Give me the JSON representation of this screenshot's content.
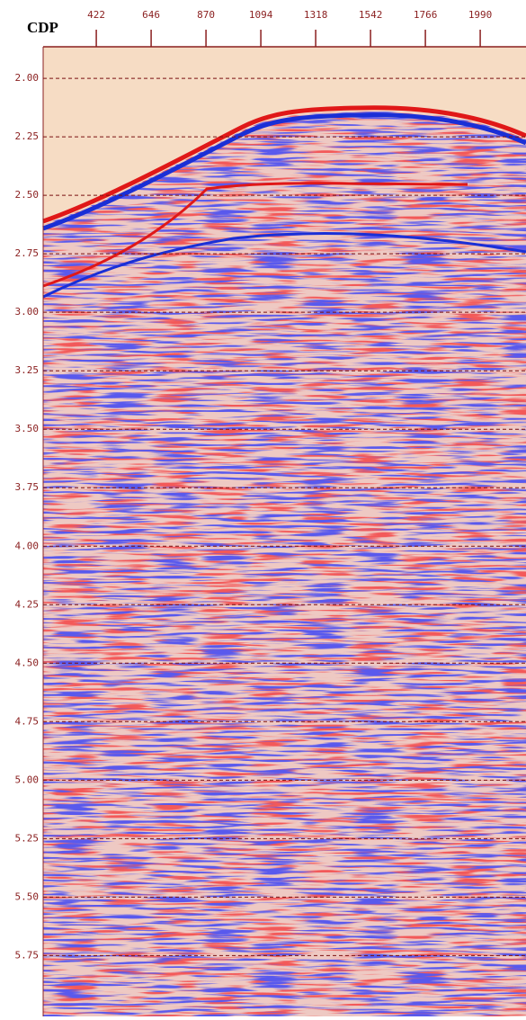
{
  "chart_data": {
    "type": "seismic",
    "xlabel": "CDP",
    "xlim": [
      205,
      2177
    ],
    "xticks": [
      422,
      646,
      870,
      1094,
      1318,
      1542,
      1766,
      1990
    ],
    "ylim": [
      1.865,
      6.01
    ],
    "yticks": [
      {
        "value": 2,
        "label": "2.00"
      },
      {
        "value": 2.25,
        "label": "2.25"
      },
      {
        "value": 2.5,
        "label": "2.50"
      },
      {
        "value": 2.75,
        "label": "2.75"
      },
      {
        "value": 3,
        "label": "3.00"
      },
      {
        "value": 3.25,
        "label": "3.25"
      },
      {
        "value": 3.5,
        "label": "3.50"
      },
      {
        "value": 3.75,
        "label": "3.75"
      },
      {
        "value": 4,
        "label": "4.00"
      },
      {
        "value": 4.25,
        "label": "4.25"
      },
      {
        "value": 4.5,
        "label": "4.50"
      },
      {
        "value": 4.75,
        "label": "4.75"
      },
      {
        "value": 5,
        "label": "5.00"
      },
      {
        "value": 5.25,
        "label": "5.25"
      },
      {
        "value": 5.5,
        "label": "5.50"
      },
      {
        "value": 5.75,
        "label": "5.75"
      }
    ],
    "grid": true
  }
}
